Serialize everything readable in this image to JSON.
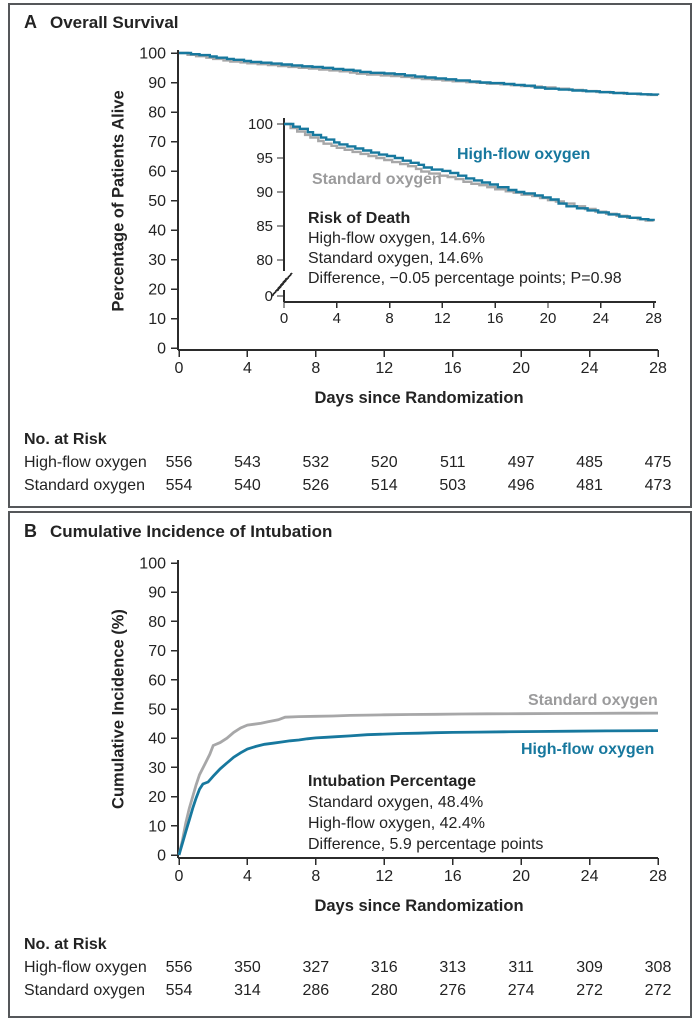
{
  "colors": {
    "highflow": "#17789e",
    "standard": "#a7a7a8",
    "text": "#232323",
    "axis": "#2b2b2b",
    "panel_border": "#55575a"
  },
  "panel_a": {
    "panel_label": "A",
    "title": "Overall Survival",
    "ylabel": "Percentage of Patients Alive",
    "xlabel": "Days since Randomization",
    "curve_labels": {
      "highflow": "High-flow oxygen",
      "standard": "Standard oxygen"
    },
    "annotation": {
      "title": "Risk of Death",
      "lines": [
        "High-flow oxygen, 14.6%",
        "Standard oxygen, 14.6%",
        "Difference, −0.05 percentage points; P=0.98"
      ]
    },
    "risk_table": {
      "title": "No. at Risk",
      "rows": [
        {
          "label": "High-flow oxygen",
          "values": [
            "556",
            "543",
            "532",
            "520",
            "511",
            "497",
            "485",
            "475"
          ]
        },
        {
          "label": "Standard oxygen",
          "values": [
            "554",
            "540",
            "526",
            "514",
            "503",
            "496",
            "481",
            "473"
          ]
        }
      ]
    }
  },
  "panel_b": {
    "panel_label": "B",
    "title": "Cumulative Incidence of Intubation",
    "ylabel": "Cumulative Incidence (%)",
    "xlabel": "Days since Randomization",
    "curve_labels": {
      "standard": "Standard oxygen",
      "highflow": "High-flow oxygen"
    },
    "annotation": {
      "title": "Intubation Percentage",
      "lines": [
        "Standard oxygen, 48.4%",
        "High-flow oxygen, 42.4%",
        "Difference, 5.9 percentage points"
      ]
    },
    "risk_table": {
      "title": "No. at Risk",
      "rows": [
        {
          "label": "High-flow oxygen",
          "values": [
            "556",
            "350",
            "327",
            "316",
            "313",
            "311",
            "309",
            "308"
          ]
        },
        {
          "label": "Standard oxygen",
          "values": [
            "554",
            "314",
            "286",
            "280",
            "276",
            "274",
            "272",
            "272"
          ]
        }
      ]
    }
  },
  "chart_data": [
    {
      "type": "line",
      "style": "step",
      "id": "overall-survival",
      "title": "Overall Survival",
      "xlabel": "Days since Randomization",
      "ylabel": "Percentage of Patients Alive",
      "xlim": [
        0,
        28
      ],
      "ylim": [
        0,
        100
      ],
      "xticks": [
        0,
        4,
        8,
        12,
        16,
        20,
        24,
        28
      ],
      "yticks": [
        100,
        90,
        80,
        70,
        60,
        50,
        40,
        30,
        20,
        10,
        0
      ],
      "inset": {
        "yticks_shown": [
          100,
          95,
          90,
          85,
          80
        ],
        "axis_break": true,
        "axis_break_to": 0,
        "xticks": [
          0,
          4,
          8,
          12,
          16,
          20,
          24,
          28
        ]
      },
      "difference": "−0.05 percentage points",
      "p_value": "P=0.98",
      "series": [
        {
          "name": "Standard oxygen",
          "color_key": "standard",
          "risk_of_death_pct": 14.6,
          "points": [
            [
              0,
              100
            ],
            [
              0.5,
              99.4
            ],
            [
              1.0,
              98.9
            ],
            [
              1.6,
              98.4
            ],
            [
              2.0,
              98.0
            ],
            [
              2.6,
              97.5
            ],
            [
              3.0,
              97.1
            ],
            [
              3.6,
              96.8
            ],
            [
              4.0,
              96.5
            ],
            [
              4.6,
              96.2
            ],
            [
              5.2,
              95.9
            ],
            [
              5.8,
              95.6
            ],
            [
              6.4,
              95.3
            ],
            [
              7.0,
              95.0
            ],
            [
              7.6,
              94.7
            ],
            [
              8.2,
              94.4
            ],
            [
              8.8,
              94.1
            ],
            [
              9.4,
              93.8
            ],
            [
              10.0,
              93.4
            ],
            [
              10.4,
              93.0
            ],
            [
              11.0,
              92.7
            ],
            [
              11.8,
              92.4
            ],
            [
              12.4,
              92.2
            ],
            [
              13.0,
              91.9
            ],
            [
              13.6,
              91.5
            ],
            [
              14.2,
              91.2
            ],
            [
              14.8,
              91.0
            ],
            [
              15.4,
              90.7
            ],
            [
              16.0,
              90.4
            ],
            [
              16.8,
              90.1
            ],
            [
              17.4,
              89.9
            ],
            [
              18.0,
              89.6
            ],
            [
              18.8,
              89.4
            ],
            [
              19.4,
              89.1
            ],
            [
              20.0,
              88.8
            ],
            [
              20.6,
              88.6
            ],
            [
              21.2,
              88.3
            ],
            [
              22.0,
              87.9
            ],
            [
              22.8,
              87.5
            ],
            [
              23.6,
              87.1
            ],
            [
              24.4,
              86.8
            ],
            [
              25.2,
              86.5
            ],
            [
              26.0,
              86.2
            ],
            [
              26.8,
              86.0
            ],
            [
              27.4,
              85.8
            ],
            [
              28,
              85.7
            ]
          ]
        },
        {
          "name": "High-flow oxygen",
          "color_key": "highflow",
          "risk_of_death_pct": 14.6,
          "points": [
            [
              0,
              100
            ],
            [
              0.7,
              99.6
            ],
            [
              1.2,
              99.3
            ],
            [
              1.8,
              98.8
            ],
            [
              2.2,
              98.4
            ],
            [
              2.8,
              98.0
            ],
            [
              3.2,
              97.7
            ],
            [
              3.8,
              97.3
            ],
            [
              4.2,
              97.0
            ],
            [
              4.8,
              96.7
            ],
            [
              5.4,
              96.4
            ],
            [
              6.0,
              96.1
            ],
            [
              6.6,
              95.8
            ],
            [
              7.2,
              95.5
            ],
            [
              7.8,
              95.3
            ],
            [
              8.4,
              95.0
            ],
            [
              9.0,
              94.6
            ],
            [
              9.6,
              94.3
            ],
            [
              10.2,
              94.0
            ],
            [
              10.6,
              93.6
            ],
            [
              11.2,
              93.3
            ],
            [
              12.0,
              93.1
            ],
            [
              12.6,
              92.8
            ],
            [
              13.2,
              92.4
            ],
            [
              13.8,
              92.0
            ],
            [
              14.4,
              91.7
            ],
            [
              15.0,
              91.4
            ],
            [
              15.6,
              91.1
            ],
            [
              16.2,
              90.7
            ],
            [
              17.0,
              90.3
            ],
            [
              17.6,
              90.0
            ],
            [
              18.2,
              89.8
            ],
            [
              19.0,
              89.5
            ],
            [
              19.6,
              89.2
            ],
            [
              20.2,
              88.9
            ],
            [
              20.8,
              88.3
            ],
            [
              21.4,
              87.9
            ],
            [
              22.2,
              87.6
            ],
            [
              23.0,
              87.3
            ],
            [
              23.8,
              87.0
            ],
            [
              24.6,
              86.7
            ],
            [
              25.4,
              86.4
            ],
            [
              26.2,
              86.2
            ],
            [
              27.0,
              86.0
            ],
            [
              27.6,
              85.9
            ],
            [
              28,
              85.8
            ]
          ]
        }
      ]
    },
    {
      "type": "line",
      "style": "line",
      "id": "cumulative-incidence-of-intubation",
      "title": "Cumulative Incidence of Intubation",
      "xlabel": "Days since Randomization",
      "ylabel": "Cumulative Incidence (%)",
      "xlim": [
        0,
        28
      ],
      "ylim": [
        0,
        100
      ],
      "xticks": [
        0,
        4,
        8,
        12,
        16,
        20,
        24,
        28
      ],
      "yticks": [
        100,
        90,
        80,
        70,
        60,
        50,
        40,
        30,
        20,
        10,
        0
      ],
      "difference": "5.9 percentage points",
      "series": [
        {
          "name": "Standard oxygen",
          "color_key": "standard",
          "final_pct": 48.4,
          "points": [
            [
              0,
              0
            ],
            [
              0.2,
              5
            ],
            [
              0.4,
              11
            ],
            [
              0.6,
              16
            ],
            [
              0.8,
              20
            ],
            [
              1.0,
              24
            ],
            [
              1.2,
              27.5
            ],
            [
              1.5,
              31
            ],
            [
              1.8,
              34.5
            ],
            [
              2.0,
              37.5
            ],
            [
              2.4,
              38.5
            ],
            [
              2.8,
              40
            ],
            [
              3.2,
              42
            ],
            [
              3.6,
              43.5
            ],
            [
              4.0,
              44.5
            ],
            [
              4.4,
              44.8
            ],
            [
              4.8,
              45.1
            ],
            [
              5.2,
              45.6
            ],
            [
              5.8,
              46.3
            ],
            [
              6.2,
              47.2
            ],
            [
              7.0,
              47.4
            ],
            [
              8.0,
              47.5
            ],
            [
              9.0,
              47.6
            ],
            [
              10.0,
              47.8
            ],
            [
              11.0,
              47.9
            ],
            [
              12.0,
              48.0
            ],
            [
              13.5,
              48.1
            ],
            [
              15.0,
              48.2
            ],
            [
              16.5,
              48.3
            ],
            [
              18,
              48.35
            ],
            [
              20,
              48.4
            ],
            [
              22,
              48.45
            ],
            [
              24,
              48.5
            ],
            [
              26,
              48.55
            ],
            [
              28,
              48.6
            ]
          ]
        },
        {
          "name": "High-flow oxygen",
          "color_key": "highflow",
          "final_pct": 42.4,
          "points": [
            [
              0,
              0
            ],
            [
              0.2,
              4
            ],
            [
              0.4,
              8
            ],
            [
              0.6,
              12
            ],
            [
              0.8,
              16
            ],
            [
              1.0,
              19.5
            ],
            [
              1.2,
              22.5
            ],
            [
              1.4,
              24.3
            ],
            [
              1.7,
              25
            ],
            [
              2.0,
              27
            ],
            [
              2.4,
              29.5
            ],
            [
              2.8,
              31.5
            ],
            [
              3.2,
              33.5
            ],
            [
              3.6,
              35
            ],
            [
              4.0,
              36.3
            ],
            [
              4.5,
              37.2
            ],
            [
              5.0,
              37.9
            ],
            [
              5.5,
              38.3
            ],
            [
              6.0,
              38.7
            ],
            [
              6.5,
              39.1
            ],
            [
              7.0,
              39.4
            ],
            [
              7.5,
              39.8
            ],
            [
              8.0,
              40.1
            ],
            [
              8.6,
              40.3
            ],
            [
              9.2,
              40.5
            ],
            [
              10.0,
              40.8
            ],
            [
              11.0,
              41.2
            ],
            [
              12.0,
              41.4
            ],
            [
              13.0,
              41.6
            ],
            [
              14.0,
              41.7
            ],
            [
              15.0,
              41.9
            ],
            [
              16.0,
              42.0
            ],
            [
              17.5,
              42.1
            ],
            [
              19.0,
              42.2
            ],
            [
              21.0,
              42.3
            ],
            [
              23.0,
              42.4
            ],
            [
              25.0,
              42.5
            ],
            [
              28,
              42.6
            ]
          ]
        }
      ]
    }
  ]
}
